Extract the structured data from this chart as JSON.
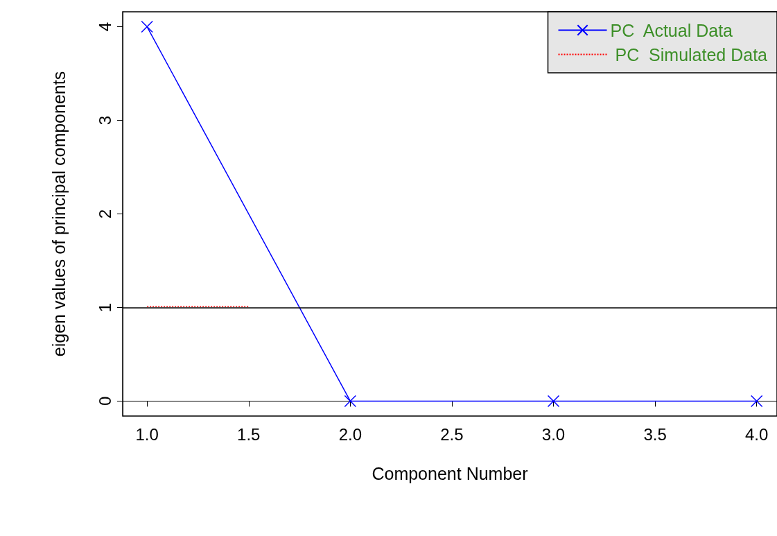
{
  "chart_data": {
    "type": "line",
    "xlabel": "Component Number",
    "ylabel": "eigen values of principal components",
    "x": [
      1,
      2,
      3,
      4
    ],
    "series": [
      {
        "name": "PC  Actual Data",
        "color": "#0000ff",
        "values": [
          4,
          0,
          0,
          0
        ],
        "marker": "cross",
        "line_style": "solid"
      },
      {
        "name": " PC  Simulated Data",
        "color": "#ff0000",
        "x": [
          1,
          1.5
        ],
        "values": [
          1.01,
          1.01
        ],
        "marker": "none",
        "line_style": "dotted"
      }
    ],
    "xlim": [
      0.88,
      4.1
    ],
    "xticks": [
      {
        "value": 1,
        "label": "1.0"
      },
      {
        "value": 1.5,
        "label": "1.5"
      },
      {
        "value": 2,
        "label": "2.0"
      },
      {
        "value": 2.5,
        "label": "2.5"
      },
      {
        "value": 3,
        "label": "3.0"
      },
      {
        "value": 3.5,
        "label": "3.5"
      },
      {
        "value": 4,
        "label": "4.0"
      }
    ],
    "ylim": [
      -0.16,
      4.16
    ],
    "yticks": [
      0,
      1,
      2,
      3,
      4
    ],
    "ref_lines": [
      {
        "axis": "y",
        "value": 1,
        "color": "#000000",
        "line_style": "solid"
      }
    ],
    "grid": false,
    "legend": "top right"
  }
}
